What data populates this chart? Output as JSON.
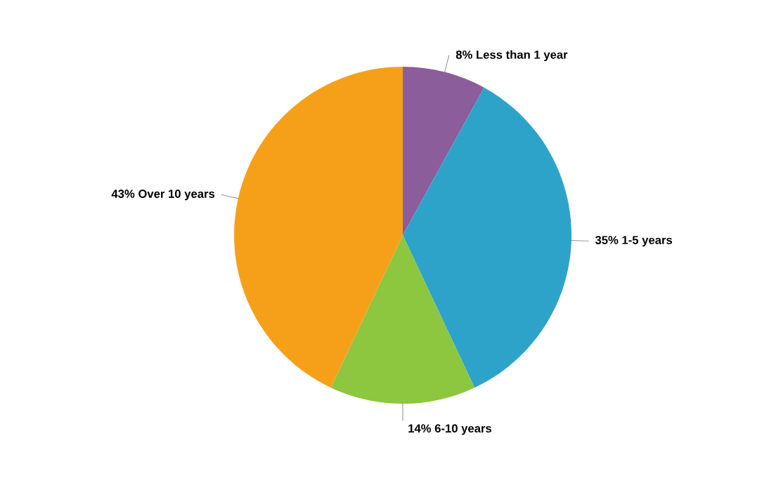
{
  "chart_data": {
    "type": "pie",
    "categories": [
      "Less than 1 year",
      "1-5 years",
      "6-10 years",
      "Over 10 years"
    ],
    "values": [
      8,
      35,
      14,
      43
    ],
    "value_labels": [
      "8%",
      "35%",
      "14%",
      "43%"
    ],
    "colors": [
      "#8b5e9b",
      "#2ea3c9",
      "#8dc63f",
      "#f6a01a"
    ]
  }
}
